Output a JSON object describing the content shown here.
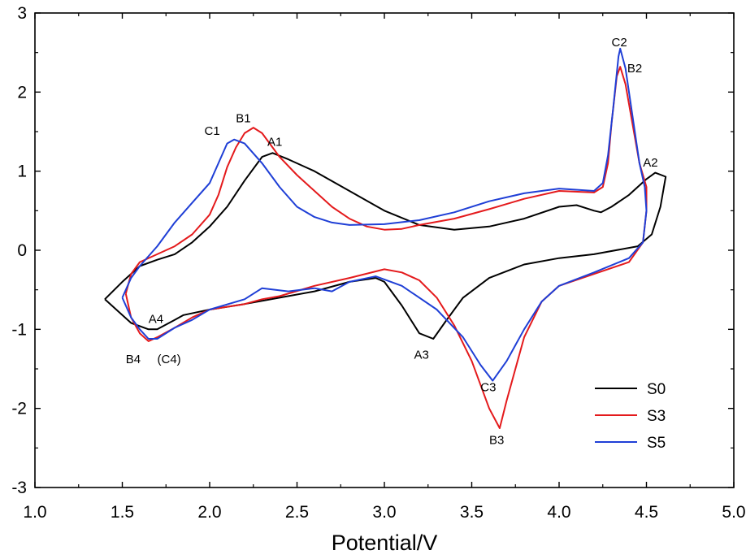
{
  "chart_data": {
    "type": "line",
    "title": "",
    "xlabel": "Potential/V",
    "ylabel": "",
    "xlim": [
      1.0,
      5.0
    ],
    "ylim": [
      -3,
      3
    ],
    "x_ticks": [
      "1.0",
      "1.5",
      "2.0",
      "2.5",
      "3.0",
      "3.5",
      "4.0",
      "4.5",
      "5.0"
    ],
    "y_ticks": [
      "-3",
      "-2",
      "-1",
      "0",
      "1",
      "2",
      "3"
    ],
    "grid": false,
    "legend_position": "bottom-right",
    "series": [
      {
        "name": "S0",
        "color": "#000000",
        "points": [
          [
            1.4,
            -0.62
          ],
          [
            1.5,
            -0.4
          ],
          [
            1.6,
            -0.2
          ],
          [
            1.7,
            -0.12
          ],
          [
            1.8,
            -0.05
          ],
          [
            1.9,
            0.1
          ],
          [
            2.0,
            0.3
          ],
          [
            2.1,
            0.55
          ],
          [
            2.2,
            0.88
          ],
          [
            2.3,
            1.18
          ],
          [
            2.36,
            1.23
          ],
          [
            2.45,
            1.15
          ],
          [
            2.6,
            1.0
          ],
          [
            2.8,
            0.75
          ],
          [
            3.0,
            0.5
          ],
          [
            3.2,
            0.32
          ],
          [
            3.4,
            0.26
          ],
          [
            3.6,
            0.3
          ],
          [
            3.8,
            0.4
          ],
          [
            4.0,
            0.55
          ],
          [
            4.1,
            0.57
          ],
          [
            4.2,
            0.5
          ],
          [
            4.24,
            0.48
          ],
          [
            4.3,
            0.55
          ],
          [
            4.4,
            0.7
          ],
          [
            4.5,
            0.9
          ],
          [
            4.55,
            0.98
          ],
          [
            4.61,
            0.93
          ],
          [
            4.58,
            0.55
          ],
          [
            4.53,
            0.2
          ],
          [
            4.45,
            0.05
          ],
          [
            4.2,
            -0.05
          ],
          [
            4.0,
            -0.1
          ],
          [
            3.8,
            -0.18
          ],
          [
            3.6,
            -0.35
          ],
          [
            3.45,
            -0.6
          ],
          [
            3.35,
            -0.9
          ],
          [
            3.28,
            -1.12
          ],
          [
            3.2,
            -1.05
          ],
          [
            3.1,
            -0.7
          ],
          [
            3.0,
            -0.4
          ],
          [
            2.95,
            -0.35
          ],
          [
            2.8,
            -0.4
          ],
          [
            2.6,
            -0.52
          ],
          [
            2.4,
            -0.6
          ],
          [
            2.2,
            -0.68
          ],
          [
            2.0,
            -0.75
          ],
          [
            1.85,
            -0.82
          ],
          [
            1.8,
            -0.88
          ],
          [
            1.7,
            -1.0
          ],
          [
            1.65,
            -1.0
          ],
          [
            1.55,
            -0.92
          ],
          [
            1.4,
            -0.62
          ]
        ]
      },
      {
        "name": "S3",
        "color": "#e41a1c",
        "points": [
          [
            1.52,
            -0.55
          ],
          [
            1.55,
            -0.3
          ],
          [
            1.6,
            -0.15
          ],
          [
            1.7,
            -0.05
          ],
          [
            1.8,
            0.05
          ],
          [
            1.9,
            0.2
          ],
          [
            2.0,
            0.45
          ],
          [
            2.05,
            0.7
          ],
          [
            2.1,
            1.05
          ],
          [
            2.15,
            1.3
          ],
          [
            2.2,
            1.48
          ],
          [
            2.25,
            1.55
          ],
          [
            2.3,
            1.48
          ],
          [
            2.4,
            1.18
          ],
          [
            2.5,
            0.95
          ],
          [
            2.6,
            0.75
          ],
          [
            2.7,
            0.55
          ],
          [
            2.8,
            0.4
          ],
          [
            2.9,
            0.3
          ],
          [
            3.0,
            0.26
          ],
          [
            3.1,
            0.27
          ],
          [
            3.2,
            0.32
          ],
          [
            3.4,
            0.4
          ],
          [
            3.6,
            0.52
          ],
          [
            3.8,
            0.65
          ],
          [
            4.0,
            0.75
          ],
          [
            4.2,
            0.73
          ],
          [
            4.25,
            0.8
          ],
          [
            4.28,
            1.1
          ],
          [
            4.3,
            1.6
          ],
          [
            4.33,
            2.2
          ],
          [
            4.35,
            2.32
          ],
          [
            4.38,
            2.1
          ],
          [
            4.42,
            1.6
          ],
          [
            4.46,
            1.1
          ],
          [
            4.5,
            0.8
          ],
          [
            4.5,
            0.5
          ],
          [
            4.48,
            0.1
          ],
          [
            4.4,
            -0.15
          ],
          [
            4.2,
            -0.3
          ],
          [
            4.0,
            -0.45
          ],
          [
            3.9,
            -0.65
          ],
          [
            3.8,
            -1.1
          ],
          [
            3.7,
            -1.9
          ],
          [
            3.66,
            -2.25
          ],
          [
            3.6,
            -2.0
          ],
          [
            3.5,
            -1.4
          ],
          [
            3.4,
            -0.95
          ],
          [
            3.3,
            -0.6
          ],
          [
            3.2,
            -0.38
          ],
          [
            3.1,
            -0.28
          ],
          [
            3.0,
            -0.24
          ],
          [
            2.8,
            -0.35
          ],
          [
            2.6,
            -0.45
          ],
          [
            2.4,
            -0.58
          ],
          [
            2.3,
            -0.62
          ],
          [
            2.2,
            -0.68
          ],
          [
            2.0,
            -0.75
          ],
          [
            1.9,
            -0.85
          ],
          [
            1.8,
            -0.98
          ],
          [
            1.7,
            -1.1
          ],
          [
            1.65,
            -1.15
          ],
          [
            1.6,
            -1.05
          ],
          [
            1.55,
            -0.85
          ],
          [
            1.52,
            -0.55
          ]
        ]
      },
      {
        "name": "S5",
        "color": "#1f3fd6",
        "points": [
          [
            1.5,
            -0.6
          ],
          [
            1.55,
            -0.35
          ],
          [
            1.6,
            -0.2
          ],
          [
            1.7,
            0.05
          ],
          [
            1.8,
            0.35
          ],
          [
            1.9,
            0.6
          ],
          [
            2.0,
            0.85
          ],
          [
            2.05,
            1.1
          ],
          [
            2.1,
            1.35
          ],
          [
            2.14,
            1.4
          ],
          [
            2.2,
            1.35
          ],
          [
            2.3,
            1.1
          ],
          [
            2.4,
            0.8
          ],
          [
            2.5,
            0.55
          ],
          [
            2.6,
            0.42
          ],
          [
            2.7,
            0.35
          ],
          [
            2.8,
            0.32
          ],
          [
            3.0,
            0.33
          ],
          [
            3.2,
            0.38
          ],
          [
            3.4,
            0.48
          ],
          [
            3.6,
            0.62
          ],
          [
            3.8,
            0.72
          ],
          [
            4.0,
            0.78
          ],
          [
            4.2,
            0.75
          ],
          [
            4.25,
            0.85
          ],
          [
            4.28,
            1.2
          ],
          [
            4.31,
            1.8
          ],
          [
            4.34,
            2.45
          ],
          [
            4.35,
            2.55
          ],
          [
            4.38,
            2.3
          ],
          [
            4.42,
            1.7
          ],
          [
            4.46,
            1.1
          ],
          [
            4.49,
            0.8
          ],
          [
            4.5,
            0.5
          ],
          [
            4.48,
            0.1
          ],
          [
            4.4,
            -0.1
          ],
          [
            4.2,
            -0.28
          ],
          [
            4.0,
            -0.45
          ],
          [
            3.9,
            -0.65
          ],
          [
            3.8,
            -1.0
          ],
          [
            3.7,
            -1.4
          ],
          [
            3.62,
            -1.65
          ],
          [
            3.55,
            -1.45
          ],
          [
            3.45,
            -1.1
          ],
          [
            3.3,
            -0.75
          ],
          [
            3.1,
            -0.45
          ],
          [
            2.95,
            -0.33
          ],
          [
            2.8,
            -0.4
          ],
          [
            2.7,
            -0.52
          ],
          [
            2.6,
            -0.48
          ],
          [
            2.45,
            -0.52
          ],
          [
            2.3,
            -0.48
          ],
          [
            2.2,
            -0.62
          ],
          [
            2.0,
            -0.75
          ],
          [
            1.9,
            -0.88
          ],
          [
            1.8,
            -0.98
          ],
          [
            1.7,
            -1.12
          ],
          [
            1.65,
            -1.12
          ],
          [
            1.6,
            -1.0
          ],
          [
            1.55,
            -0.85
          ],
          [
            1.5,
            -0.6
          ]
        ]
      }
    ],
    "annotations": [
      {
        "text": "C2",
        "x": 4.3,
        "y": 2.58
      },
      {
        "text": "B2",
        "x": 4.39,
        "y": 2.25
      },
      {
        "text": "A2",
        "x": 4.48,
        "y": 1.06
      },
      {
        "text": "C1",
        "x": 1.97,
        "y": 1.46
      },
      {
        "text": "B1",
        "x": 2.15,
        "y": 1.62
      },
      {
        "text": "A1",
        "x": 2.33,
        "y": 1.32
      },
      {
        "text": "A4",
        "x": 1.65,
        "y": -0.92
      },
      {
        "text": "B4",
        "x": 1.52,
        "y": -1.43
      },
      {
        "text": "(C4)",
        "x": 1.7,
        "y": -1.43
      },
      {
        "text": "A3",
        "x": 3.17,
        "y": -1.37
      },
      {
        "text": "C3",
        "x": 3.55,
        "y": -1.78
      },
      {
        "text": "B3",
        "x": 3.6,
        "y": -2.45
      }
    ]
  }
}
